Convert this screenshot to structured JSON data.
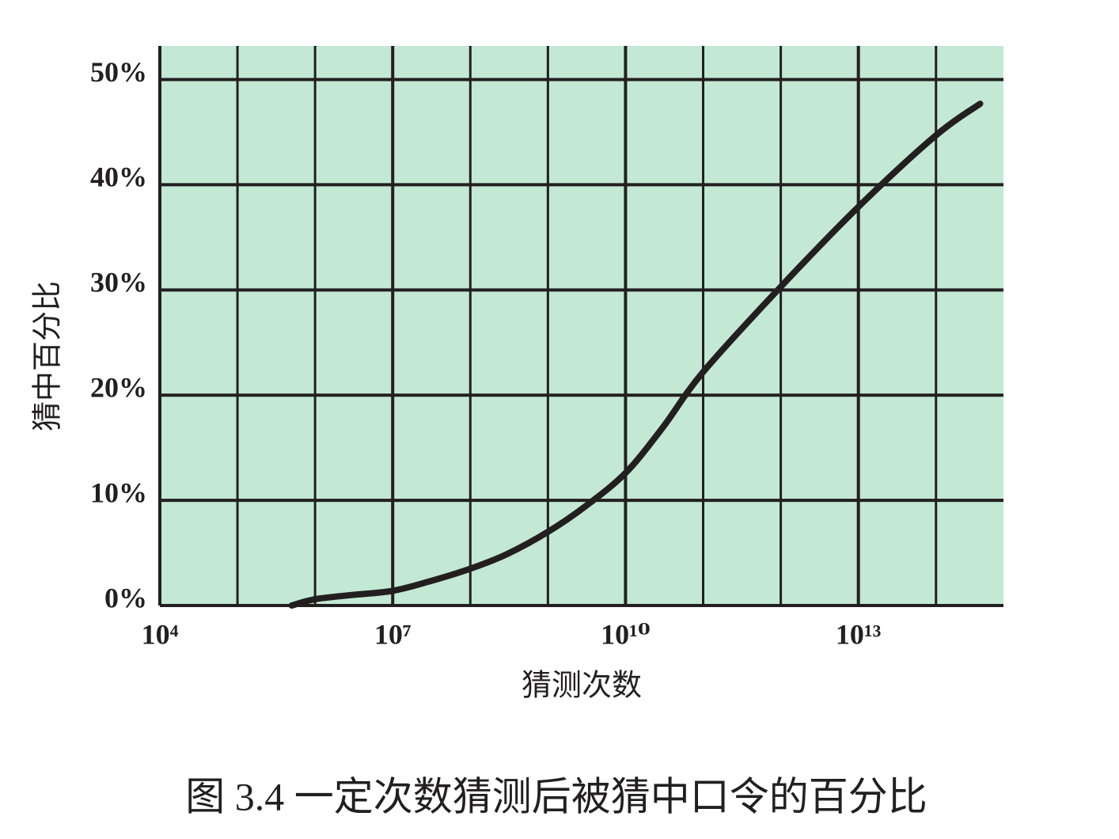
{
  "chart_data": {
    "type": "line",
    "title": "图 3.4  一定次数猜测后被猜中口令的百分比",
    "xlabel": "猜测次数",
    "ylabel": "猜中百分比",
    "xscale": "log",
    "x": [
      500000,
      1000000,
      3000000,
      10000000,
      30000000,
      100000000,
      300000000,
      1000000000,
      3000000000,
      10000000000,
      30000000000,
      100000000000,
      1000000000000,
      10000000000000,
      100000000000000,
      370000000000000
    ],
    "series": [
      {
        "name": "猜中百分比",
        "color": "#231f20",
        "values": [
          0,
          0.6,
          1.0,
          1.4,
          2.3,
          3.5,
          4.9,
          7.0,
          9.4,
          12.6,
          16.9,
          22.2,
          30.3,
          37.9,
          44.7,
          47.7
        ]
      }
    ],
    "xlim": [
      10000,
      740000000000000
    ],
    "ylim": [
      0,
      53.2
    ],
    "xticks": [
      {
        "value": 10000,
        "label": "10⁴"
      },
      {
        "value": 10000000,
        "label": "10⁷"
      },
      {
        "value": 10000000000,
        "label": "10¹⁰"
      },
      {
        "value": 10000000000000,
        "label": "10¹³"
      }
    ],
    "xgrid": [
      100000,
      1000000,
      100000000,
      1000000000,
      100000000000,
      1000000000000,
      100000000000000
    ],
    "yticks": [
      {
        "value": 0,
        "label": "0%"
      },
      {
        "value": 10,
        "label": "10%"
      },
      {
        "value": 20,
        "label": "20%"
      },
      {
        "value": 30,
        "label": "30%"
      },
      {
        "value": 40,
        "label": "40%"
      },
      {
        "value": 50,
        "label": "50%"
      }
    ],
    "grid": true,
    "background": "#c3e9d4"
  }
}
